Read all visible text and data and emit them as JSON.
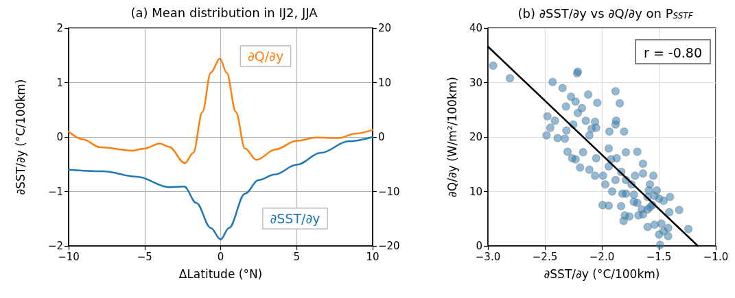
{
  "chart_data": [
    {
      "type": "line",
      "title": "(a) Mean distribution in IJ2, JJA",
      "xlabel": "ΔLatitude (°N)",
      "ylabel": "∂SST/∂y (°C/100km)",
      "xlim": [
        -10,
        10
      ],
      "xticks": [
        {
          "value": -10,
          "label": "−10"
        },
        {
          "value": -5,
          "label": "−5"
        },
        0,
        5,
        10
      ],
      "ylim": [
        -2,
        2
      ],
      "yticks": [
        {
          "value": -2,
          "label": "−2"
        },
        {
          "value": -1,
          "label": "−1"
        },
        0,
        1,
        2
      ],
      "y2lim": [
        -20,
        20
      ],
      "y2ticks": [
        {
          "value": -20,
          "label": "−20"
        },
        {
          "value": -10,
          "label": "−10"
        },
        0,
        10,
        20
      ],
      "grid": true,
      "legend": false,
      "marker": "none",
      "line_style": "solid",
      "series": [
        {
          "name": "∂SST/∂y",
          "color": "#1f77b4",
          "x": [
            -10,
            -7.75,
            -5.5,
            -3.4,
            -2.4,
            -1.6,
            -0.65,
            0,
            0.55,
            1.6,
            2.5,
            3.55,
            5,
            6.6,
            8.4,
            10
          ],
          "values": [
            -0.6,
            -0.63,
            -0.73,
            -0.92,
            -0.91,
            -1.21,
            -1.67,
            -1.88,
            -1.67,
            -1.04,
            -0.79,
            -0.69,
            -0.51,
            -0.29,
            -0.08,
            0.0
          ]
        },
        {
          "name": "∂Q/∂y",
          "color": "#ff7f0e",
          "axis": "y2",
          "x": [
            -10,
            -9.1,
            -7.9,
            -5.8,
            -5.0,
            -4.0,
            -3.4,
            -2.35,
            -1.8,
            -1.2,
            -0.65,
            -0.05,
            0.4,
            1.0,
            1.6,
            2.35,
            3.6,
            5.0,
            6.3,
            7.8,
            8.8,
            10
          ],
          "values": [
            1.0,
            -0.4,
            -1.9,
            -2.5,
            -2.1,
            -1.2,
            -1.8,
            -4.8,
            -2.9,
            4.6,
            11.8,
            14.4,
            11.8,
            4.6,
            -2.1,
            -4.2,
            -2.3,
            -0.7,
            -0.1,
            -0.2,
            0.6,
            1.3
          ]
        }
      ]
    },
    {
      "type": "scatter",
      "title": "(b) ∂SST/∂y vs ∂Q/∂y on P$_{SSTF}$",
      "xlabel": "∂SST/∂y (°C/100km)",
      "ylabel": "∂Q/∂y (W/m²/100km)",
      "xlim": [
        -3,
        -1
      ],
      "xticks": [
        {
          "value": -3,
          "label": "−3.0"
        },
        {
          "value": -2.5,
          "label": "−2.5"
        },
        {
          "value": -2,
          "label": "−2.0"
        },
        {
          "value": -1.5,
          "label": "−1.5"
        },
        {
          "value": -1,
          "label": "−1.0"
        }
      ],
      "ylim": [
        0,
        40
      ],
      "yticks": [
        0,
        10,
        20,
        30,
        40
      ],
      "grid": true,
      "legend": false,
      "marker": "circle",
      "annotations": [
        "r = -0.80"
      ],
      "series": [
        {
          "color": "#1f77b4",
          "x": [
            -2.954,
            -2.807,
            -2.432,
            -2.345,
            -2.217,
            -2.211,
            -2.271,
            -2.231,
            -2.315,
            -2.175,
            -2.12,
            -2.04,
            -1.88,
            -1.843,
            -2.478,
            -2.412,
            -2.452,
            -2.486,
            -2.388,
            -2.325,
            -2.311,
            -2.251,
            -2.211,
            -2.141,
            -2.06,
            -2.09,
            -2.11,
            -2.05,
            -1.88,
            -1.874,
            -1.934,
            -1.805,
            -2.301,
            -2.261,
            -2.231,
            -2.191,
            -2.165,
            -2.11,
            -2.05,
            -2.06,
            -1.99,
            -1.94,
            -1.92,
            -1.87,
            -1.789,
            -1.689,
            -1.639,
            -1.94,
            -1.88,
            -1.83,
            -1.789,
            -1.739,
            -1.709,
            -1.639,
            -1.548,
            -1.97,
            -1.91,
            -1.819,
            -1.789,
            -1.719,
            -1.578,
            -1.588,
            -1.518,
            -1.538,
            -1.598,
            -1.498,
            -1.458,
            -1.402,
            -1.689,
            -1.994,
            -1.94,
            -1.831,
            -1.799,
            -1.759,
            -1.809,
            -1.679,
            -1.639,
            -1.598,
            -1.578,
            -1.558,
            -1.408,
            -1.321,
            -1.598,
            -1.538,
            -1.478,
            -1.418,
            -1.498,
            -1.418,
            -1.241,
            -1.488,
            -1.458,
            -1.719,
            -1.649
          ],
          "values": [
            33.1,
            30.8,
            30.1,
            29.0,
            31.7,
            32.0,
            27.4,
            26.5,
            25.6,
            25.3,
            27.8,
            26.3,
            28.4,
            26.2,
            23.8,
            23.0,
            21.7,
            20.3,
            19.8,
            19.7,
            21.2,
            22.3,
            24.4,
            23.0,
            22.8,
            21.5,
            20.3,
            21.7,
            22.3,
            23.0,
            21.0,
            21.0,
            17.3,
            16.1,
            15.9,
            14.4,
            17.2,
            14.0,
            16.1,
            12.9,
            12.9,
            17.9,
            15.9,
            16.1,
            17.2,
            17.3,
            15.1,
            14.6,
            12.1,
            13.6,
            12.1,
            11.3,
            12.9,
            13.3,
            12.9,
            11.3,
            10.0,
            9.6,
            9.6,
            9.4,
            11.3,
            10.2,
            10.2,
            9.2,
            9.0,
            8.7,
            8.3,
            9.0,
            7.9,
            7.5,
            7.4,
            7.3,
            5.6,
            5.4,
            4.6,
            5.6,
            5.8,
            6.7,
            7.1,
            7.5,
            6.2,
            6.6,
            3.5,
            3.9,
            4.1,
            3.3,
            2.1,
            1.8,
            3.1,
            0.2,
            2.7,
            8.1,
            6.7
          ]
        },
        {
          "type": "line",
          "marker": "none",
          "color": "#000000",
          "x": [
            -3,
            -1.157
          ],
          "values": [
            36.6,
            0
          ]
        }
      ]
    }
  ]
}
